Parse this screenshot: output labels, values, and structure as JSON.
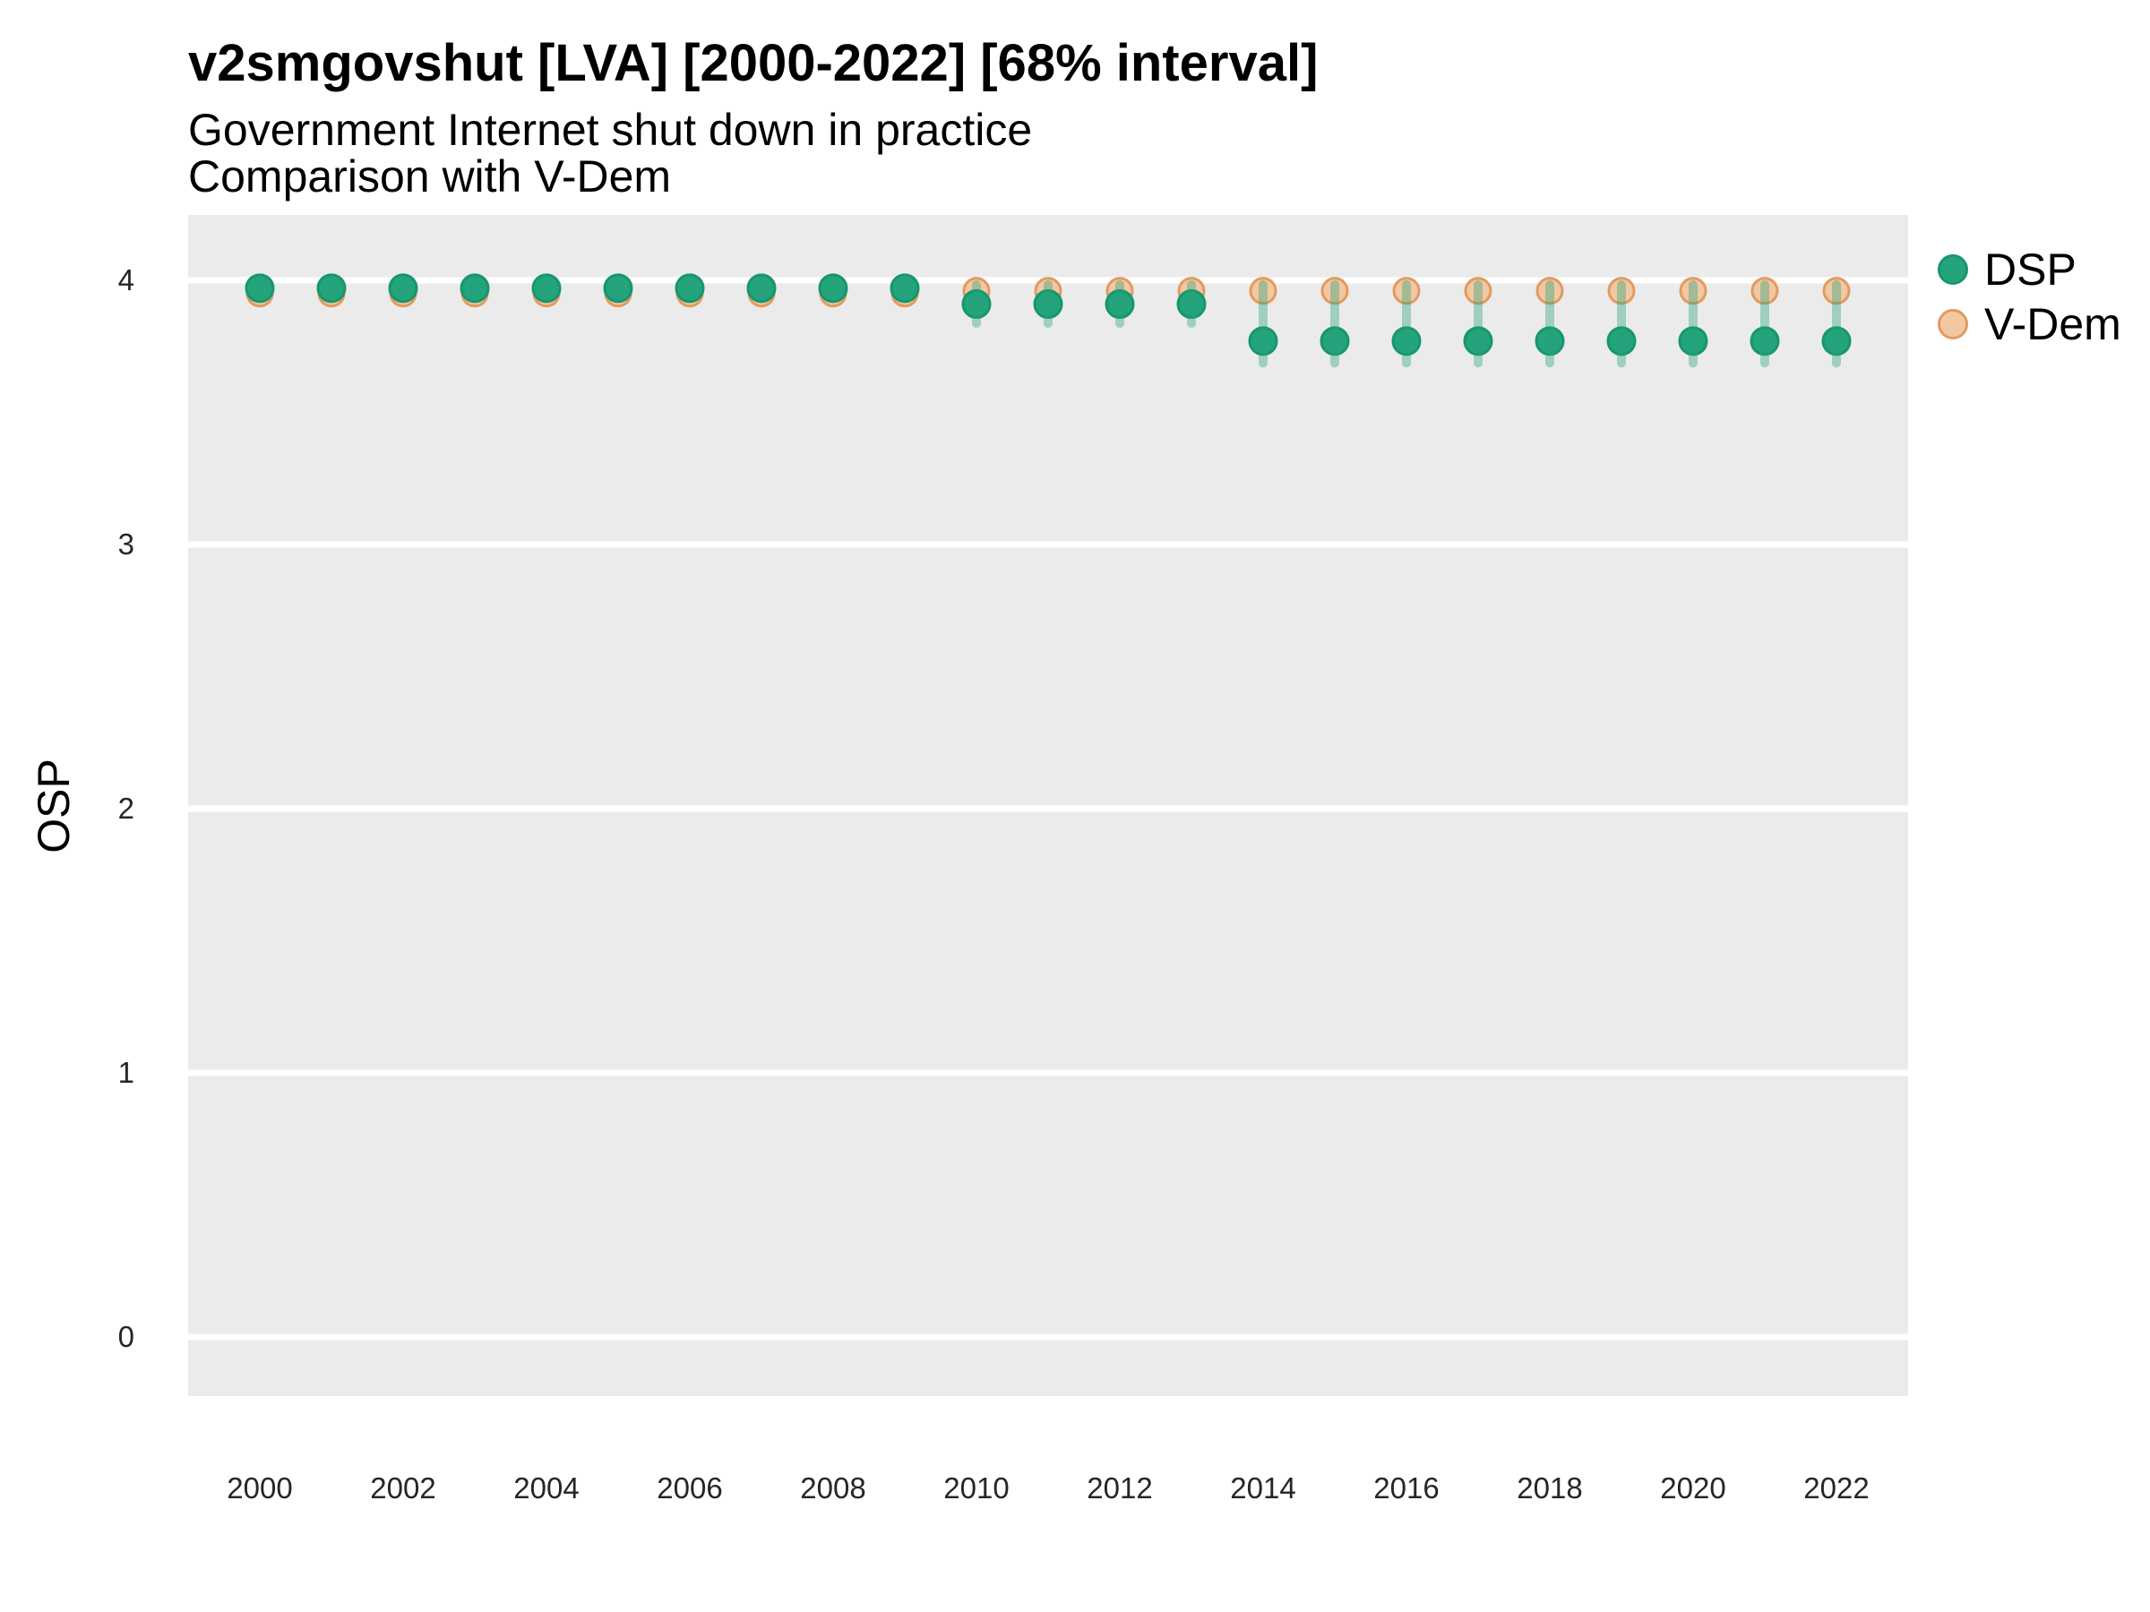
{
  "chart_data": {
    "type": "scatter",
    "title": "v2smgovshut [LVA] [2000-2022] [68% interval]",
    "subtitle": [
      "Government Internet shut down in practice",
      "Comparison with V-Dem"
    ],
    "ylabel": "OSP",
    "xlabel": "",
    "x": [
      2000,
      2001,
      2002,
      2003,
      2004,
      2005,
      2006,
      2007,
      2008,
      2009,
      2010,
      2011,
      2012,
      2013,
      2014,
      2015,
      2016,
      2017,
      2018,
      2019,
      2020,
      2021,
      2022
    ],
    "series": [
      {
        "name": "DSP",
        "type": "pointrange",
        "color": "#24A47C",
        "stroke_color": "#17966E",
        "interval_color": "#25A27A",
        "interval_opacity": 0.38,
        "values": [
          3.97,
          3.97,
          3.97,
          3.97,
          3.97,
          3.97,
          3.97,
          3.97,
          3.97,
          3.97,
          3.91,
          3.91,
          3.91,
          3.91,
          3.77,
          3.77,
          3.77,
          3.77,
          3.77,
          3.77,
          3.77,
          3.77,
          3.77
        ],
        "interval_68_low": [
          3.93,
          3.93,
          3.93,
          3.93,
          3.93,
          3.93,
          3.93,
          3.93,
          3.93,
          3.93,
          3.82,
          3.82,
          3.82,
          3.82,
          3.67,
          3.67,
          3.67,
          3.67,
          3.67,
          3.67,
          3.67,
          3.67,
          3.67
        ],
        "interval_68_high": [
          4.0,
          4.0,
          4.0,
          4.0,
          4.0,
          4.0,
          4.0,
          4.0,
          4.0,
          4.0,
          4.0,
          4.0,
          4.0,
          4.0,
          4.0,
          4.0,
          4.0,
          4.0,
          4.0,
          4.0,
          4.0,
          4.0,
          4.0
        ]
      },
      {
        "name": "V-Dem",
        "type": "point",
        "color": "#F1C8A2",
        "stroke_color": "#E39A5F",
        "values": [
          3.95,
          3.95,
          3.95,
          3.95,
          3.95,
          3.95,
          3.95,
          3.95,
          3.95,
          3.95,
          3.96,
          3.96,
          3.96,
          3.96,
          3.96,
          3.96,
          3.96,
          3.96,
          3.96,
          3.96,
          3.96,
          3.96,
          3.96
        ]
      }
    ],
    "x_ticks": [
      "2000",
      "2002",
      "2004",
      "2006",
      "2008",
      "2010",
      "2012",
      "2014",
      "2016",
      "2018",
      "2020",
      "2022"
    ],
    "y_ticks": [
      "0",
      "1",
      "2",
      "3",
      "4"
    ],
    "ylim": [
      -0.22,
      4.25
    ],
    "grid": "major-horizontal-only",
    "panel_background": "#EBEBEB",
    "gridline_color": "#FFFFFF",
    "legend_position": "right"
  }
}
